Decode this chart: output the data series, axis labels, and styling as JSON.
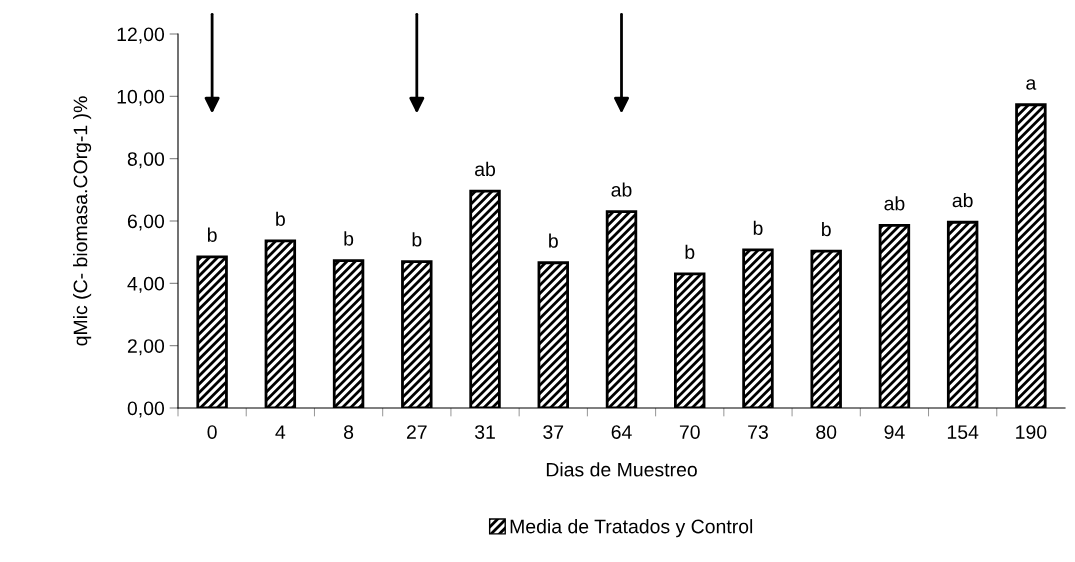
{
  "chart_data": {
    "type": "bar",
    "xlabel": "Dias de Muestreo",
    "ylabel": "qMic (C- biomasa.COrg-1 )%",
    "categories": [
      "0",
      "4",
      "8",
      "27",
      "31",
      "37",
      "64",
      "70",
      "73",
      "80",
      "94",
      "154",
      "190"
    ],
    "series": [
      {
        "name": "Media de Tratados y Control",
        "color": "#000000",
        "values": [
          4.85,
          5.36,
          4.73,
          4.7,
          6.96,
          4.66,
          6.3,
          4.3,
          5.07,
          5.03,
          5.86,
          5.96,
          9.73
        ],
        "value_labels": [
          "b",
          "b",
          "b",
          "b",
          "ab",
          "b",
          "ab",
          "b",
          "b",
          "b",
          "ab",
          "ab",
          "a"
        ]
      }
    ],
    "ylim": [
      0,
      12
    ],
    "yticks": [
      {
        "value": 0,
        "label": "0,00"
      },
      {
        "value": 2,
        "label": "2,00"
      },
      {
        "value": 4,
        "label": "4,00"
      },
      {
        "value": 6,
        "label": "6,00"
      },
      {
        "value": 8,
        "label": "8,00"
      },
      {
        "value": 10,
        "label": "10,00"
      },
      {
        "value": 12,
        "label": "12,00"
      }
    ],
    "grid": false,
    "legend": "bottom"
  }
}
